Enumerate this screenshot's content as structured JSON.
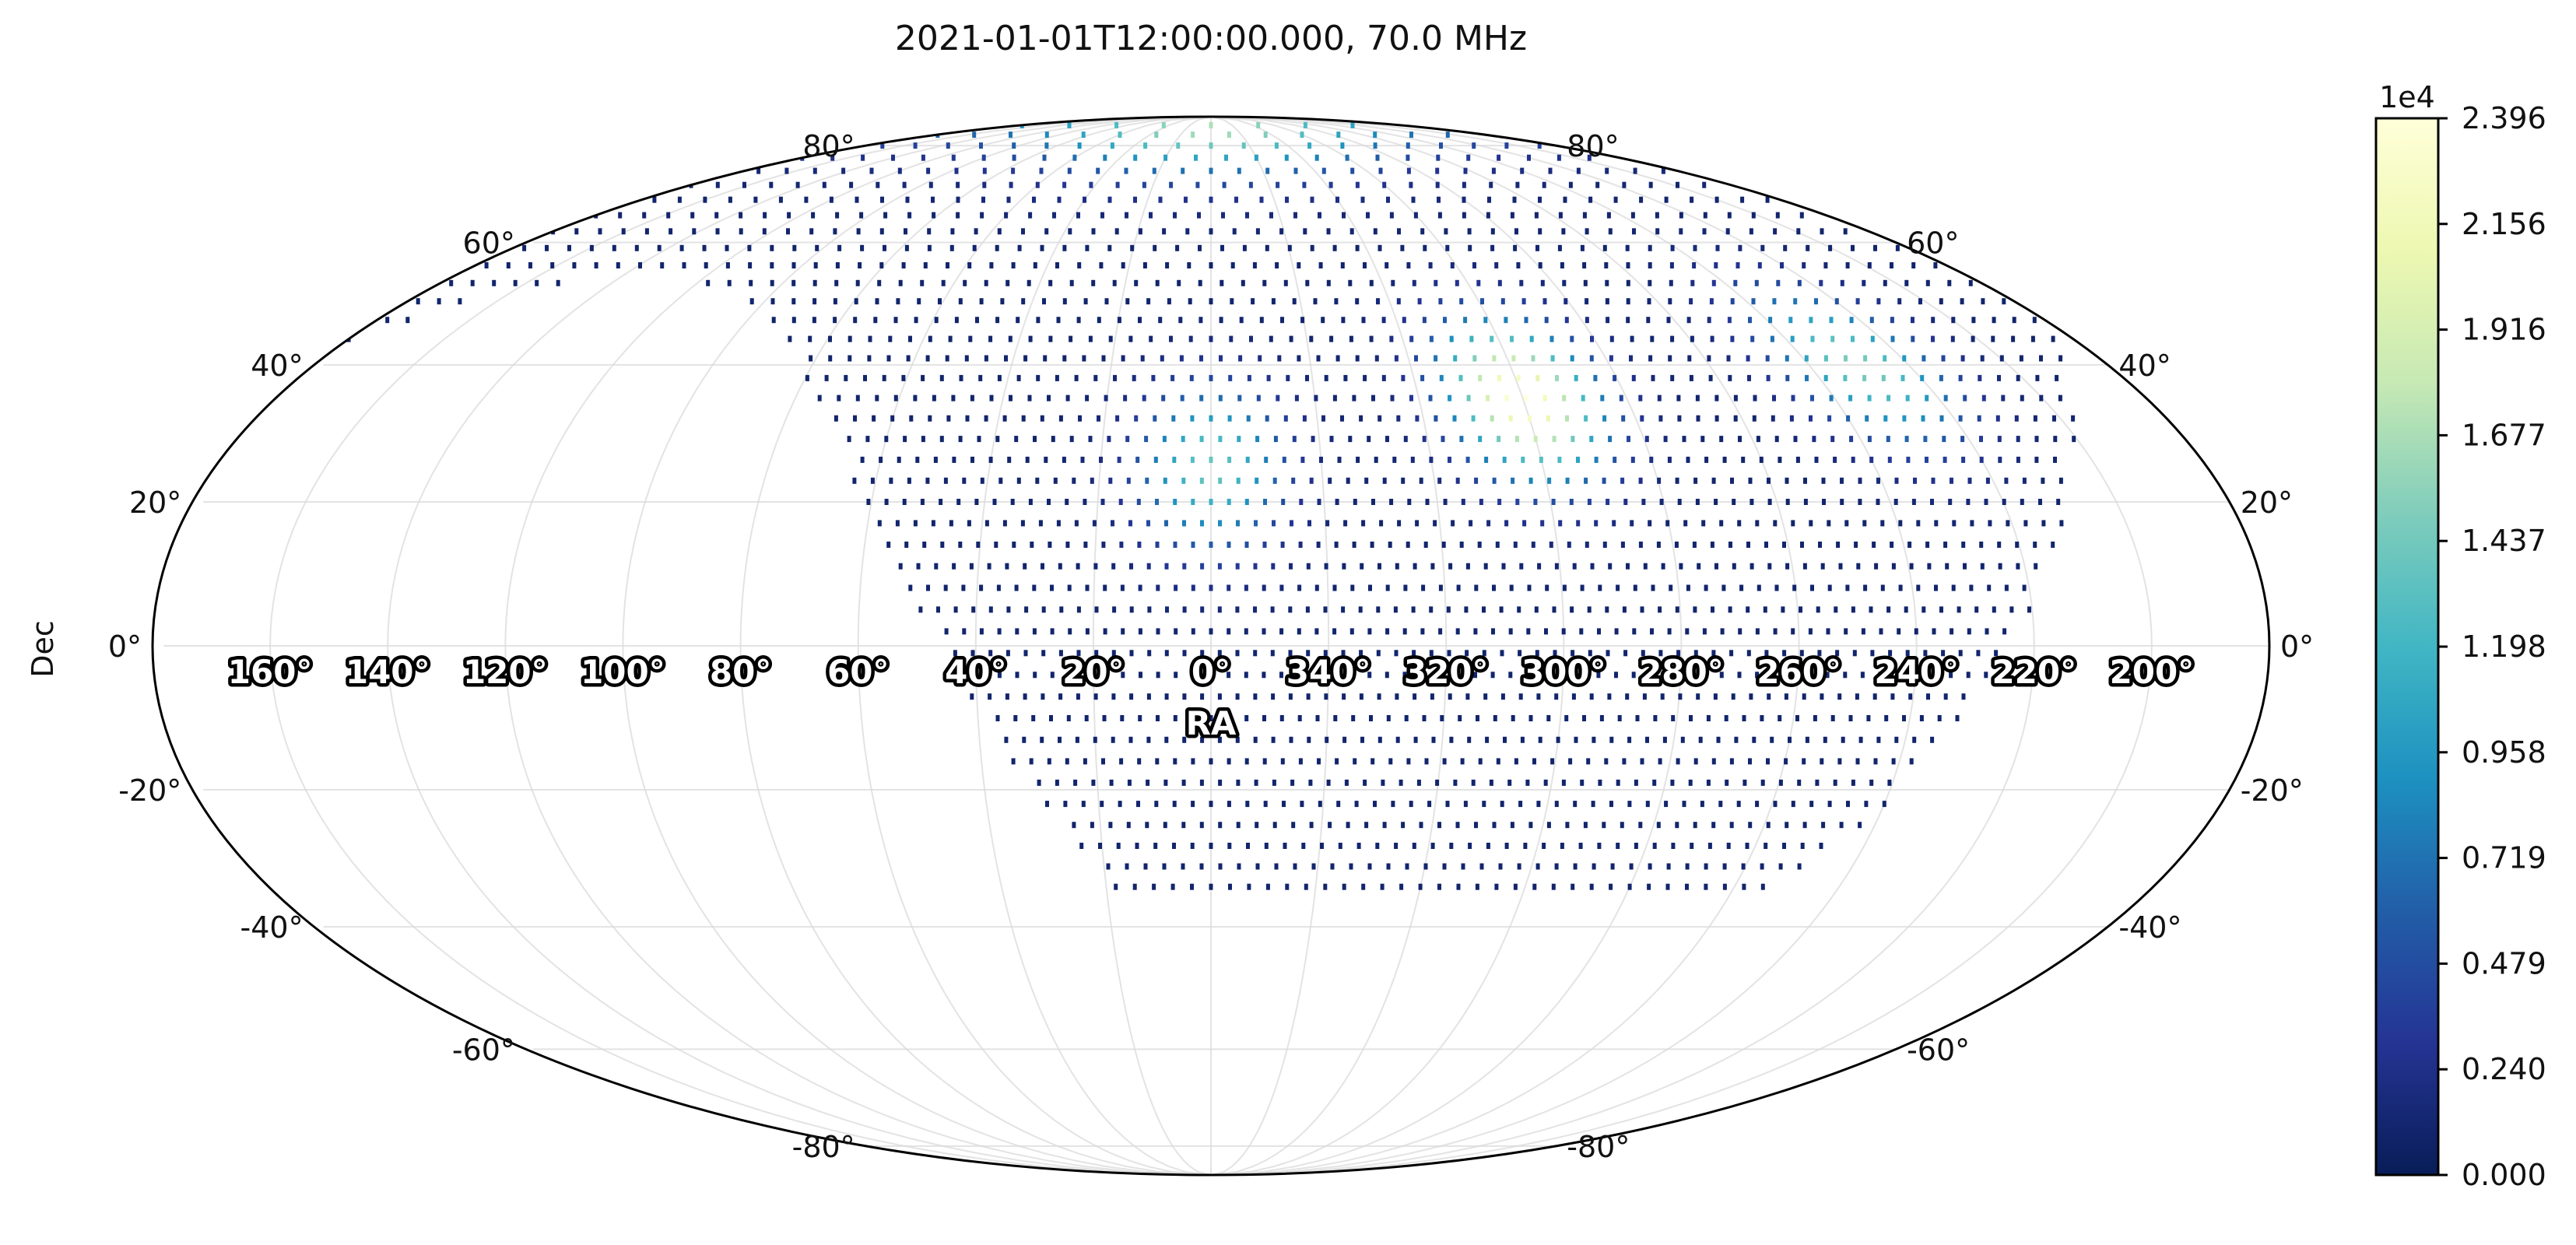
{
  "chart_data": {
    "type": "heatmap",
    "projection": "mollweide",
    "title": "2021-01-01T12:00:00.000, 70.0 MHz",
    "xlabel": "RA",
    "ylabel": "Dec",
    "grid": true,
    "ra_tick_labels": [
      "160°",
      "140°",
      "120°",
      "100°",
      "80°",
      "60°",
      "40°",
      "20°",
      "0°",
      "340°",
      "320°",
      "300°",
      "280°",
      "260°",
      "240°",
      "220°",
      "200°"
    ],
    "ra_ticks_deg": [
      160,
      140,
      120,
      100,
      80,
      60,
      40,
      20,
      0,
      340,
      320,
      300,
      280,
      260,
      240,
      220,
      200
    ],
    "dec_tick_labels_left": [
      "80°",
      "60°",
      "40°",
      "20°",
      "0°",
      "-20°",
      "-40°",
      "-60°",
      "-80°"
    ],
    "dec_tick_labels_right": [
      "80°",
      "60°",
      "40°",
      "20°",
      "0°",
      "-20°",
      "-40°",
      "-60°",
      "-80°"
    ],
    "dec_ticks_deg": [
      80,
      60,
      40,
      20,
      0,
      -20,
      -40,
      -60,
      -80
    ],
    "colorbar": {
      "exponent_label": "1e4",
      "tick_labels": [
        "2.396",
        "2.156",
        "1.916",
        "1.677",
        "1.437",
        "1.198",
        "0.958",
        "0.719",
        "0.479",
        "0.240",
        "0.000"
      ],
      "range": [
        0,
        2.396
      ],
      "colormap": "YlGnBu",
      "colormap_stops": [
        "#081d58",
        "#253494",
        "#225ea8",
        "#1d91c0",
        "#41b6c4",
        "#7fcdbb",
        "#c7e9b4",
        "#edf8b1",
        "#ffffd9"
      ]
    },
    "background_level": 0.1,
    "hotspots": [
      {
        "ra_deg": 0,
        "dec_deg": 85,
        "value": 1.6
      },
      {
        "ra_deg": 0,
        "dec_deg": 25,
        "value": 1.3
      },
      {
        "ra_deg": 300,
        "dec_deg": 35,
        "value": 2.3
      },
      {
        "ra_deg": 230,
        "dec_deg": 40,
        "value": 1.4
      }
    ],
    "visible_region": "observable sky above horizon"
  }
}
